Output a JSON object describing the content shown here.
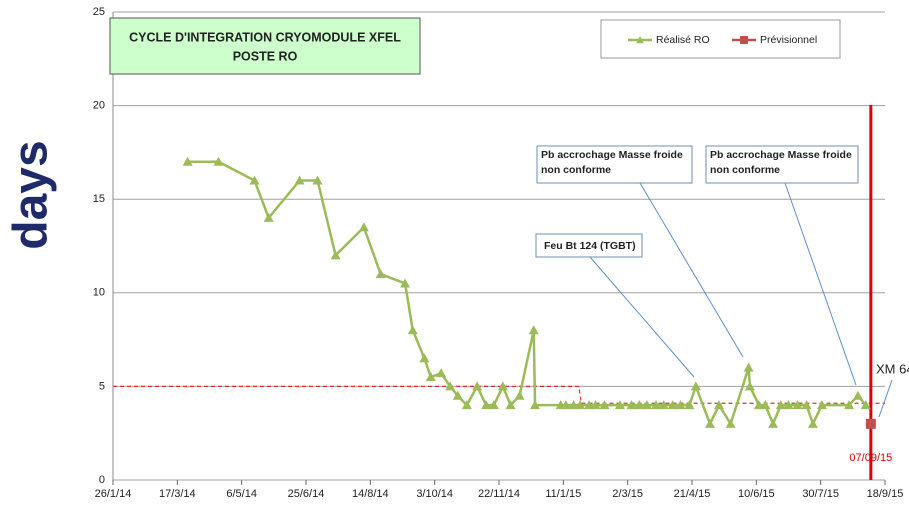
{
  "chart_data": {
    "type": "line",
    "title_lines": [
      "CYCLE D'INTEGRATION CRYOMODULE XFEL",
      "POSTE RO"
    ],
    "y_label": "days",
    "xlim": [
      "2014-01-26",
      "2015-09-18"
    ],
    "xticks": [
      {
        "value": "2014-01-26",
        "label": "26/1/14"
      },
      {
        "value": "2014-03-17",
        "label": "17/3/14"
      },
      {
        "value": "2014-05-06",
        "label": "6/5/14"
      },
      {
        "value": "2014-06-25",
        "label": "25/6/14"
      },
      {
        "value": "2014-08-14",
        "label": "14/8/14"
      },
      {
        "value": "2014-10-03",
        "label": "3/10/14"
      },
      {
        "value": "2014-11-22",
        "label": "22/11/14"
      },
      {
        "value": "2015-01-11",
        "label": "11/1/15"
      },
      {
        "value": "2015-03-02",
        "label": "2/3/15"
      },
      {
        "value": "2015-04-21",
        "label": "21/4/15"
      },
      {
        "value": "2015-06-10",
        "label": "10/6/15"
      },
      {
        "value": "2015-07-30",
        "label": "30/7/15"
      },
      {
        "value": "2015-09-18",
        "label": "18/9/15"
      }
    ],
    "ylim": [
      0,
      25
    ],
    "yticks": [
      0,
      5,
      10,
      15,
      20,
      25
    ],
    "grid": true,
    "series": [
      {
        "name": "Réalisé RO",
        "color": "#9bbb59",
        "x": [
          "2014-03-25",
          "2014-04-18",
          "2014-05-16",
          "2014-05-27",
          "2014-06-20",
          "2014-07-04",
          "2014-07-18",
          "2014-08-09",
          "2014-08-22",
          "2014-09-10",
          "2014-09-16",
          "2014-09-25",
          "2014-09-30",
          "2014-10-08",
          "2014-10-15",
          "2014-10-21",
          "2014-10-28",
          "2014-11-05",
          "2014-11-12",
          "2014-11-18",
          "2014-11-25",
          "2014-12-01",
          "2014-12-08",
          "2014-12-19",
          "2014-12-20",
          "2015-01-09",
          "2015-01-13",
          "2015-01-19",
          "2015-01-24",
          "2015-01-31",
          "2015-02-05",
          "2015-02-12",
          "2015-02-24",
          "2015-03-05",
          "2015-03-11",
          "2015-03-17",
          "2015-03-24",
          "2015-03-30",
          "2015-04-06",
          "2015-04-12",
          "2015-04-19",
          "2015-04-24",
          "2015-05-05",
          "2015-05-12",
          "2015-05-21",
          "2015-06-04",
          "2015-06-05",
          "2015-06-12",
          "2015-06-17",
          "2015-06-23",
          "2015-06-29",
          "2015-07-05",
          "2015-07-12",
          "2015-07-19",
          "2015-07-24",
          "2015-07-31",
          "2015-08-21",
          "2015-08-28",
          "2015-09-03"
        ],
        "values": [
          17,
          17,
          16,
          14,
          16,
          16,
          12,
          13.5,
          11,
          10.5,
          8,
          6.5,
          5.5,
          5.7,
          5,
          4.5,
          4,
          5,
          4,
          4,
          5,
          4,
          4.5,
          8,
          4,
          4,
          4,
          4,
          4,
          4,
          4,
          4,
          4,
          4,
          4,
          4,
          4,
          4,
          4,
          4,
          4,
          5,
          3,
          4,
          3,
          6,
          5,
          4,
          4,
          3,
          4,
          4,
          4,
          4,
          3,
          4,
          4,
          4.5,
          4
        ]
      },
      {
        "name": "Prévisionnel",
        "color": "#c0504d",
        "x": [
          "2015-09-07"
        ],
        "values": [
          3
        ]
      }
    ],
    "reference_line": {
      "color": "#e03030",
      "x": [
        "2014-01-26",
        "2015-01-23",
        "2015-01-25",
        "2015-09-18"
      ],
      "values": [
        5,
        5,
        4.1,
        4.1
      ]
    },
    "marker_line": {
      "x": "2015-09-07",
      "label": "07/09/15",
      "color": "#e00000"
    },
    "annotations": [
      "Feu Bt 124 (TGBT)",
      "Pb accrochage Masse froide non conforme",
      "Pb accrochage Masse froide non conforme",
      "XM 64"
    ]
  }
}
